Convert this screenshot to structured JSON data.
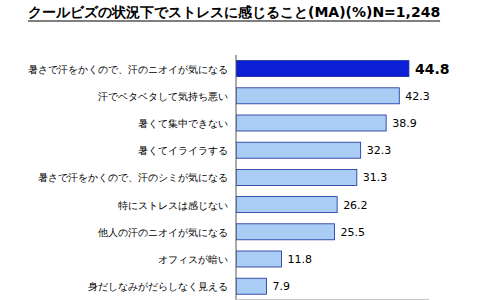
{
  "chart_data": {
    "type": "bar",
    "orientation": "horizontal",
    "title": "クールビズの状況下でストレスに感じること(MA)(%)N=1,248",
    "categories": [
      "暑さで汗をかくので、汗のニオイが気になる",
      "汗でベタベタして気持ち悪い",
      "暑くて集中できない",
      "暑くてイライラする",
      "暑さで汗をかくので、汗のシミが気になる",
      "特にストレスは感じない",
      "他人の汗のニオイが気になる",
      "オフィスが暗い",
      "身だしなみがだらしなく見える"
    ],
    "values": [
      44.8,
      42.3,
      38.9,
      32.3,
      31.3,
      26.2,
      25.5,
      11.8,
      7.9
    ],
    "colors": [
      "#0a1fd6",
      "#a9cdf5",
      "#a9cdf5",
      "#a9cdf5",
      "#a9cdf5",
      "#a9cdf5",
      "#a9cdf5",
      "#a9cdf5",
      "#a9cdf5"
    ],
    "ylim": [
      0,
      50
    ],
    "data_labels": true
  }
}
